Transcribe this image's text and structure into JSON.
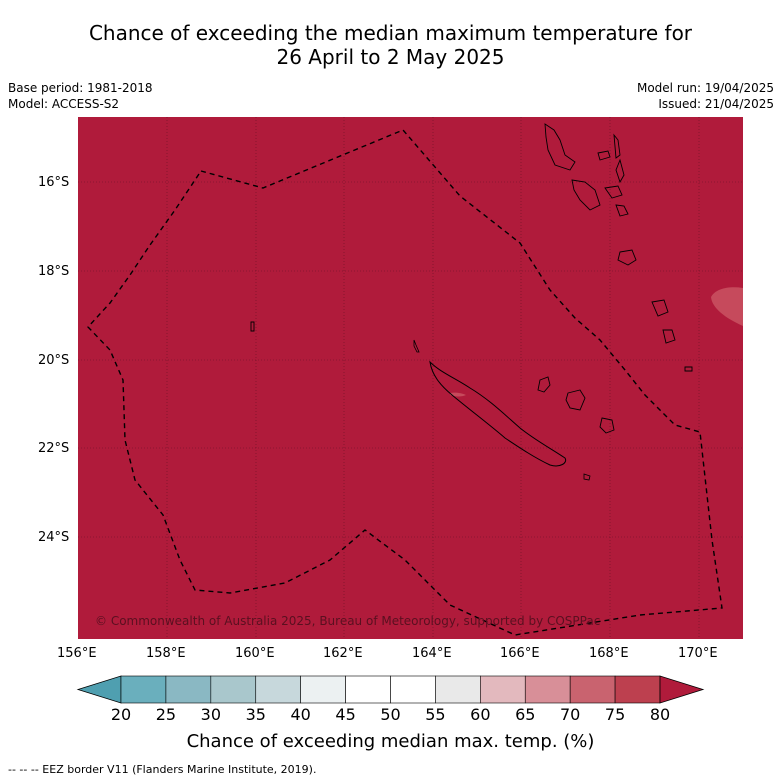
{
  "title_line1": "Chance of exceeding the median maximum temperature for",
  "title_line2": "26 April to 2 May 2025",
  "base_period": "Base period: 1981-2018",
  "model": "Model: ACCESS-S2",
  "model_run": "Model run: 19/04/2025",
  "issued": "Issued: 21/04/2025",
  "copyright": "© Commonwealth of Australia 2025, Bureau of Meteorology, supported by COSPPac",
  "lat_labels": [
    "16°S",
    "18°S",
    "20°S",
    "22°S",
    "24°S"
  ],
  "lon_labels": [
    "156°E",
    "158°E",
    "160°E",
    "162°E",
    "164°E",
    "166°E",
    "168°E",
    "170°E"
  ],
  "colorbar": {
    "ticks": [
      "20",
      "25",
      "30",
      "35",
      "40",
      "45",
      "50",
      "55",
      "60",
      "65",
      "70",
      "75",
      "80"
    ],
    "colors": [
      "#4f9fb0",
      "#6aafbd",
      "#8ab8c3",
      "#a9c7cc",
      "#c7d8dc",
      "#ecf1f2",
      "#ffffff",
      "#ffffff",
      "#e9e9e9",
      "#e3b9be",
      "#d88f98",
      "#c9636f",
      "#bd404f",
      "#b01b3b"
    ],
    "title": "Chance of exceeding median max. temp. (%)"
  },
  "footer": "--  --  -- EEZ border V11 (Flanders Marine Institute, 2019).",
  "colors": {
    "map_fill": "#b01b3b",
    "patch": "#c64a5c"
  }
}
